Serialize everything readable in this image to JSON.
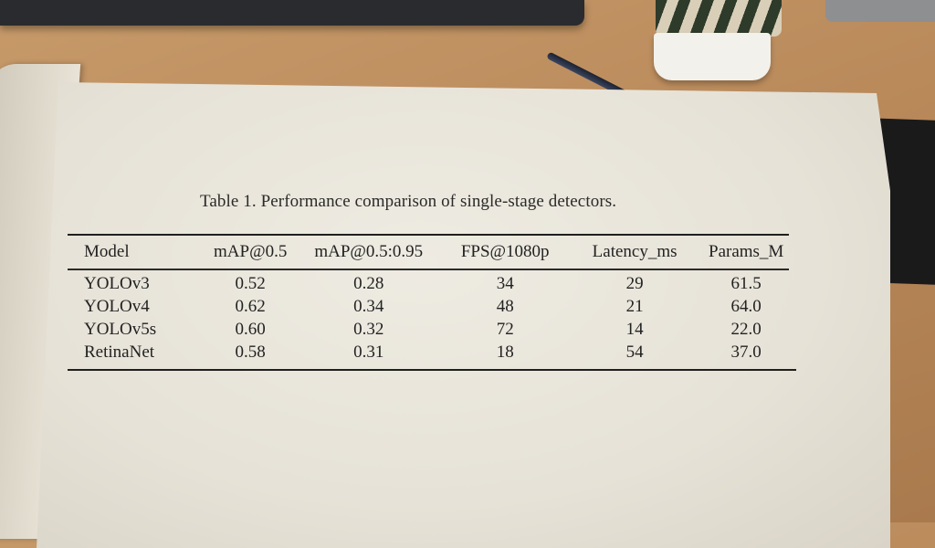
{
  "caption": "Table 1. Performance comparison of single-stage detectors.",
  "table": {
    "headers": [
      "Model",
      "mAP@0.5",
      "mAP@0.5:0.95",
      "FPS@1080p",
      "Latency_ms",
      "Params_M"
    ],
    "rows": [
      [
        "YOLOv3",
        "0.52",
        "0.28",
        "34",
        "29",
        "61.5"
      ],
      [
        "YOLOv4",
        "0.62",
        "0.34",
        "48",
        "21",
        "64.0"
      ],
      [
        "YOLOv5s",
        "0.60",
        "0.32",
        "72",
        "14",
        "22.0"
      ],
      [
        "RetinaNet",
        "0.58",
        "0.31",
        "18",
        "54",
        "37.0"
      ]
    ]
  },
  "chart_data": {
    "type": "table",
    "title": "Table 1. Performance comparison of single-stage detectors.",
    "columns": [
      "Model",
      "mAP@0.5",
      "mAP@0.5:0.95",
      "FPS@1080p",
      "Latency_ms",
      "Params_M"
    ],
    "rows": [
      {
        "Model": "YOLOv3",
        "mAP@0.5": 0.52,
        "mAP@0.5:0.95": 0.28,
        "FPS@1080p": 34,
        "Latency_ms": 29,
        "Params_M": 61.5
      },
      {
        "Model": "YOLOv4",
        "mAP@0.5": 0.62,
        "mAP@0.5:0.95": 0.34,
        "FPS@1080p": 48,
        "Latency_ms": 21,
        "Params_M": 64.0
      },
      {
        "Model": "YOLOv5s",
        "mAP@0.5": 0.6,
        "mAP@0.5:0.95": 0.32,
        "FPS@1080p": 72,
        "Latency_ms": 14,
        "Params_M": 22.0
      },
      {
        "Model": "RetinaNet",
        "mAP@0.5": 0.58,
        "mAP@0.5:0.95": 0.31,
        "FPS@1080p": 18,
        "Latency_ms": 54,
        "Params_M": 37.0
      }
    ]
  }
}
